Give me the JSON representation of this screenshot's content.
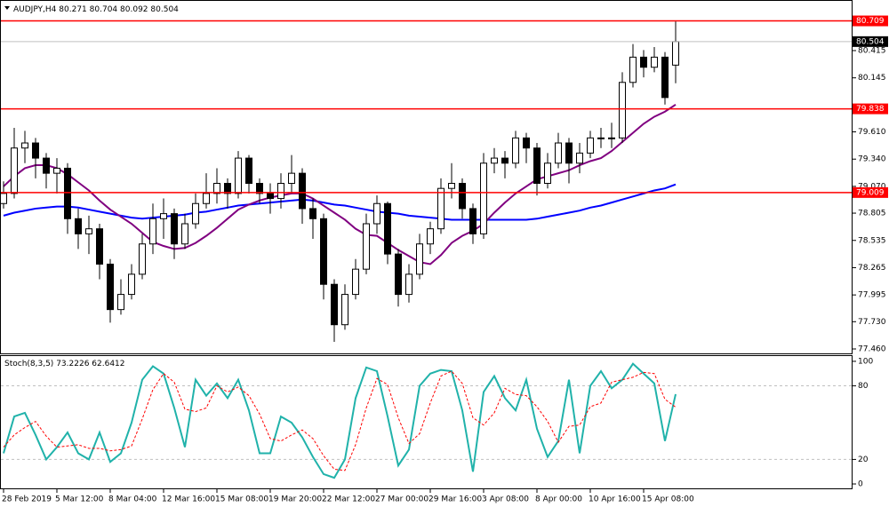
{
  "chart_data": [
    {
      "type": "candlestick",
      "title": "AUDJPY,H4",
      "categories": [
        "28 Feb 2019",
        null,
        null,
        null,
        null,
        "5 Mar 12:00",
        null,
        null,
        null,
        null,
        "8 Mar 04:00",
        null,
        null,
        null,
        null,
        "12 Mar 16:00",
        null,
        null,
        null,
        null,
        "15 Mar 08:00",
        null,
        null,
        null,
        null,
        "19 Mar 20:00",
        null,
        null,
        null,
        null,
        "22 Mar 12:00",
        null,
        null,
        null,
        null,
        "27 Mar 00:00",
        null,
        null,
        null,
        null,
        "29 Mar 16:00",
        null,
        null,
        null,
        null,
        "3 Apr 08:00",
        null,
        null,
        null,
        null,
        "8 Apr 00:00",
        null,
        null,
        null,
        null,
        "10 Apr 16:00",
        null,
        null,
        null,
        null,
        "15 Apr 08:00",
        null,
        null,
        null
      ],
      "open": [
        78.9,
        79.0,
        79.45,
        79.5,
        79.35,
        79.2,
        79.25,
        78.75,
        78.6,
        78.65,
        78.3,
        77.85,
        78.0,
        78.2,
        78.5,
        78.75,
        78.8,
        78.5,
        78.7,
        78.9,
        79.0,
        79.1,
        79.0,
        79.35,
        79.1,
        79.0,
        78.95,
        79.1,
        79.2,
        78.85,
        78.75,
        78.1,
        77.7,
        78.0,
        78.25,
        78.7,
        78.9,
        78.4,
        78.0,
        78.2,
        78.5,
        78.65,
        79.05,
        79.1,
        78.85,
        78.6,
        79.3,
        79.35,
        79.3,
        79.55,
        79.45,
        79.1,
        79.3,
        79.5,
        79.3,
        79.4,
        79.55,
        79.55,
        79.55,
        80.1,
        80.35,
        80.25,
        80.35,
        80.271
      ],
      "high": [
        79.12,
        79.65,
        79.62,
        79.55,
        79.4,
        79.35,
        79.3,
        78.85,
        78.78,
        78.7,
        78.35,
        78.15,
        78.3,
        78.6,
        78.9,
        78.95,
        78.85,
        78.8,
        79.0,
        79.2,
        79.25,
        79.15,
        79.42,
        79.38,
        79.15,
        79.1,
        79.2,
        79.38,
        79.25,
        78.95,
        78.8,
        78.15,
        78.1,
        78.35,
        78.8,
        78.98,
        78.92,
        78.45,
        78.3,
        78.6,
        78.72,
        79.15,
        79.3,
        79.15,
        78.9,
        79.4,
        79.45,
        79.42,
        79.62,
        79.6,
        79.5,
        79.4,
        79.6,
        79.55,
        79.5,
        79.62,
        79.65,
        79.7,
        80.2,
        80.48,
        80.42,
        80.45,
        80.4,
        80.704
      ],
      "low": [
        78.85,
        78.95,
        79.3,
        79.15,
        79.05,
        79.0,
        78.6,
        78.45,
        78.4,
        78.15,
        77.72,
        77.8,
        77.95,
        78.15,
        78.4,
        78.55,
        78.35,
        78.45,
        78.65,
        78.85,
        78.9,
        78.85,
        78.95,
        79.0,
        78.9,
        78.8,
        78.85,
        79.0,
        78.7,
        78.55,
        77.95,
        77.53,
        77.65,
        77.95,
        78.2,
        78.6,
        78.3,
        77.88,
        77.92,
        78.15,
        78.4,
        78.6,
        78.95,
        78.75,
        78.5,
        78.55,
        79.2,
        79.15,
        79.25,
        79.3,
        78.98,
        79.05,
        79.25,
        79.1,
        79.2,
        79.35,
        79.45,
        79.45,
        79.5,
        80.05,
        80.15,
        80.2,
        79.88,
        80.092
      ],
      "close": [
        79.0,
        79.45,
        79.5,
        79.35,
        79.2,
        79.25,
        78.75,
        78.6,
        78.65,
        78.3,
        77.85,
        78.0,
        78.2,
        78.5,
        78.75,
        78.8,
        78.5,
        78.7,
        78.9,
        79.0,
        79.1,
        79.0,
        79.35,
        79.1,
        79.0,
        78.95,
        79.1,
        79.2,
        78.85,
        78.75,
        78.1,
        77.7,
        78.0,
        78.25,
        78.7,
        78.9,
        78.4,
        78.0,
        78.2,
        78.5,
        78.65,
        79.05,
        79.1,
        78.85,
        78.6,
        79.3,
        79.35,
        79.3,
        79.55,
        79.45,
        79.1,
        79.3,
        79.5,
        79.3,
        79.4,
        79.55,
        79.55,
        79.55,
        80.1,
        80.35,
        80.25,
        80.35,
        79.95,
        80.504
      ],
      "series": [
        {
          "color": "#0000ff",
          "values": [
            78.78,
            78.81,
            78.83,
            78.85,
            78.86,
            78.87,
            78.87,
            78.86,
            78.84,
            78.82,
            78.8,
            78.78,
            78.76,
            78.75,
            78.76,
            78.77,
            78.78,
            78.79,
            78.81,
            78.82,
            78.84,
            78.86,
            78.88,
            78.89,
            78.9,
            78.91,
            78.92,
            78.93,
            78.94,
            78.93,
            78.91,
            78.89,
            78.88,
            78.86,
            78.84,
            78.82,
            78.81,
            78.8,
            78.78,
            78.77,
            78.76,
            78.75,
            78.74,
            78.74,
            78.74,
            78.74,
            78.74,
            78.74,
            78.74,
            78.74,
            78.75,
            78.77,
            78.79,
            78.81,
            78.83,
            78.86,
            78.88,
            78.91,
            78.94,
            78.97,
            79.0,
            79.03,
            79.05,
            79.09
          ]
        },
        {
          "color": "#800080",
          "values": [
            79.07,
            79.17,
            79.25,
            79.28,
            79.28,
            79.25,
            79.19,
            79.11,
            79.03,
            78.93,
            78.84,
            78.77,
            78.7,
            78.61,
            78.52,
            78.48,
            78.45,
            78.46,
            78.51,
            78.58,
            78.66,
            78.75,
            78.84,
            78.89,
            78.93,
            78.96,
            78.98,
            79.0,
            79.0,
            78.95,
            78.88,
            78.81,
            78.74,
            78.65,
            78.59,
            78.58,
            78.51,
            78.44,
            78.38,
            78.32,
            78.3,
            78.39,
            78.51,
            78.58,
            78.63,
            78.7,
            78.81,
            78.91,
            79.0,
            79.07,
            79.14,
            79.17,
            79.2,
            79.23,
            79.28,
            79.32,
            79.35,
            79.42,
            79.51,
            79.6,
            79.69,
            79.76,
            79.81,
            79.88
          ]
        }
      ],
      "hlines": [
        {
          "value": 80.709,
          "color": "#ff0000"
        },
        {
          "value": 79.838,
          "color": "#ff0000"
        },
        {
          "value": 79.009,
          "color": "#ff0000"
        }
      ],
      "ylim": [
        77.416,
        80.916
      ],
      "yticks": [
        80.415,
        80.145,
        {
          "value": 79.61,
          "label": "79.610"
        },
        {
          "value": 79.34,
          "label": "79.340"
        },
        {
          "value": 79.07,
          "label": "79.070"
        },
        78.805,
        78.535,
        78.265,
        77.995,
        {
          "value": 77.73,
          "label": "77.730"
        },
        {
          "value": 77.46,
          "label": "77.460"
        }
      ],
      "bull_color": "#ffffff",
      "bear_color": "#000000"
    },
    {
      "type": "line",
      "title": "Stoch(8,3,5)",
      "series": [
        {
          "color": "#20b2aa",
          "values": [
            25,
            55,
            58,
            40,
            20,
            30,
            42,
            25,
            20,
            42,
            18,
            25,
            50,
            85,
            96,
            90,
            62,
            30,
            85,
            72,
            82,
            70,
            85,
            60,
            25,
            25,
            55,
            50,
            38,
            22,
            8,
            5,
            20,
            70,
            95,
            92,
            55,
            15,
            28,
            80,
            90,
            93,
            92,
            60,
            10,
            75,
            88,
            70,
            60,
            85,
            45,
            22,
            35,
            85,
            25,
            80,
            92,
            78,
            85,
            98,
            90,
            82,
            35,
            73.2226
          ]
        },
        {
          "color": "#ff0000",
          "dashed": true,
          "values": [
            30,
            40,
            46,
            51,
            39,
            30,
            31,
            32,
            29,
            29,
            27,
            28,
            31,
            53,
            77,
            90,
            83,
            61,
            59,
            62,
            80,
            75,
            79,
            72,
            57,
            37,
            35,
            40,
            44,
            37,
            23,
            12,
            11,
            32,
            62,
            86,
            81,
            54,
            33,
            41,
            66,
            88,
            92,
            82,
            54,
            48,
            58,
            78,
            73,
            72,
            63,
            51,
            34,
            47,
            48,
            63,
            66,
            83,
            85,
            87,
            91,
            90,
            69,
            62.6412
          ]
        }
      ],
      "levels": [
        20,
        80
      ],
      "ylim": [
        -3.6,
        104.3
      ],
      "yticks": [
        0,
        20,
        80,
        100
      ]
    }
  ]
}
